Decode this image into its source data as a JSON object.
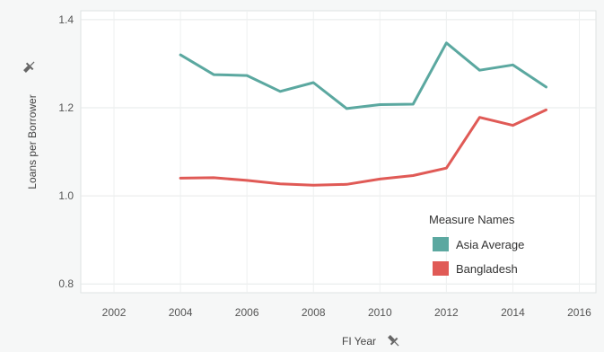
{
  "chart_data": {
    "type": "line",
    "xlabel": "FI Year",
    "ylabel": "Loans per Borrower",
    "xlim": [
      2001,
      2016.5
    ],
    "ylim": [
      0.78,
      1.42
    ],
    "x_ticks": [
      2002,
      2004,
      2006,
      2008,
      2010,
      2012,
      2014,
      2016
    ],
    "y_ticks": [
      0.8,
      1.0,
      1.2,
      1.4
    ],
    "y_tick_labels": [
      "0.8",
      "1.0",
      "1.2",
      "1.4"
    ],
    "x": [
      2004,
      2005,
      2006,
      2007,
      2008,
      2009,
      2010,
      2011,
      2012,
      2013,
      2014,
      2015
    ],
    "series": [
      {
        "name": "Asia Average",
        "color": "#5ba8a0",
        "values": [
          1.32,
          1.275,
          1.273,
          1.237,
          1.257,
          1.198,
          1.207,
          1.208,
          1.347,
          1.285,
          1.297,
          1.247
        ]
      },
      {
        "name": "Bangladesh",
        "color": "#e05a56",
        "values": [
          1.04,
          1.041,
          1.035,
          1.027,
          1.024,
          1.026,
          1.038,
          1.046,
          1.063,
          1.178,
          1.16,
          1.195
        ]
      }
    ],
    "grid": true,
    "legend": {
      "title": "Measure Names",
      "placement": "bottom-right"
    }
  }
}
